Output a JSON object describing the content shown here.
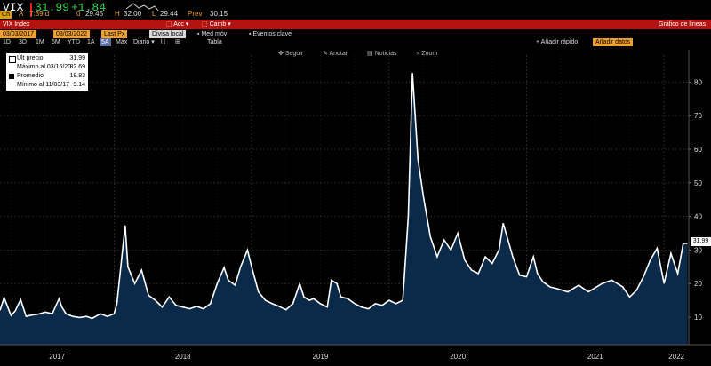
{
  "quote": {
    "ticker": "VIX",
    "last": "31.99",
    "change": "+1.84",
    "flag": "A",
    "time": "7:39 d",
    "open_label": "0",
    "open": "29.45",
    "high_label": "H",
    "high": "32.00",
    "low_label": "L",
    "low": "29.44",
    "prev_label": "Prev",
    "prev": "30.15"
  },
  "header": {
    "index_name": "VIX Index",
    "acc_button": "Acc",
    "camb_button": "Camb",
    "chart_type": "Gráfico de líneas"
  },
  "range": {
    "start": "03/03/2017",
    "end": "03/03/2022",
    "field": "Last Px",
    "currency": "Divisa local",
    "moving_avg": "Med móv",
    "key_events": "Eventos clave"
  },
  "periods": [
    "1D",
    "3D",
    "1M",
    "6M",
    "YTD",
    "1A",
    "5A",
    "Máx"
  ],
  "frequency": "Diario",
  "table_button": "Tabla",
  "quick_add": "Añadir rápido",
  "add_data": "Añadir datos",
  "chart_tools": [
    "Seguir",
    "Anotar",
    "Noticias",
    "Zoom"
  ],
  "legend": [
    {
      "label": "Últ precio",
      "value": "31.99",
      "color": "#ffffff"
    },
    {
      "label": "Máximo al 03/16/20",
      "value": "82.69",
      "color": "#ffffff"
    },
    {
      "label": "Promedio",
      "value": "18.83",
      "color": "#000000"
    },
    {
      "label": "Mínimo al 11/03/17",
      "value": "9.14",
      "color": "#ffffff"
    }
  ],
  "last_price_tag": "31.99",
  "colors": {
    "red_bar": "#b3140f",
    "orange": "#f0a030",
    "line": "#ffffff",
    "area": "#0b2a4a",
    "up": "#2fd14a"
  },
  "chart_data": {
    "type": "area",
    "title": "",
    "xlabel": "",
    "ylabel": "",
    "ylim": [
      4,
      90
    ],
    "yticks": [
      10,
      20,
      30,
      40,
      50,
      60,
      70,
      80
    ],
    "year_labels": [
      "2017",
      "2018",
      "2019",
      "2020",
      "2021",
      "2022"
    ],
    "x": [
      2017.17,
      2017.2,
      2017.25,
      2017.28,
      2017.32,
      2017.36,
      2017.4,
      2017.45,
      2017.5,
      2017.55,
      2017.6,
      2017.62,
      2017.65,
      2017.7,
      2017.75,
      2017.8,
      2017.84,
      2017.9,
      2017.95,
      2018.0,
      2018.02,
      2018.08,
      2018.1,
      2018.15,
      2018.2,
      2018.25,
      2018.3,
      2018.35,
      2018.4,
      2018.45,
      2018.5,
      2018.55,
      2018.6,
      2018.65,
      2018.7,
      2018.75,
      2018.8,
      2018.83,
      2018.88,
      2018.92,
      2018.97,
      2019.0,
      2019.05,
      2019.1,
      2019.15,
      2019.2,
      2019.25,
      2019.3,
      2019.35,
      2019.38,
      2019.42,
      2019.45,
      2019.5,
      2019.55,
      2019.58,
      2019.62,
      2019.65,
      2019.7,
      2019.75,
      2019.8,
      2019.85,
      2019.9,
      2019.95,
      2020.0,
      2020.05,
      2020.1,
      2020.14,
      2020.17,
      2020.21,
      2020.25,
      2020.3,
      2020.35,
      2020.4,
      2020.45,
      2020.5,
      2020.55,
      2020.6,
      2020.65,
      2020.7,
      2020.75,
      2020.8,
      2020.83,
      2020.9,
      2020.95,
      2021.0,
      2021.05,
      2021.08,
      2021.12,
      2021.17,
      2021.22,
      2021.3,
      2021.38,
      2021.45,
      2021.55,
      2021.62,
      2021.7,
      2021.75,
      2021.8,
      2021.85,
      2021.9,
      2021.95,
      2022.0,
      2022.05,
      2022.1,
      2022.14,
      2022.17
    ],
    "values": [
      12.0,
      15.8,
      10.5,
      11.8,
      15.2,
      10.2,
      10.6,
      10.9,
      11.5,
      11.0,
      15.5,
      13.0,
      11.0,
      10.2,
      9.9,
      10.2,
      9.6,
      11.0,
      10.2,
      11.0,
      14.0,
      37.3,
      25.0,
      20.0,
      24.0,
      16.5,
      15.0,
      13.0,
      16.0,
      13.5,
      13.0,
      12.5,
      13.2,
      12.5,
      14.0,
      20.0,
      24.8,
      21.0,
      19.5,
      25.0,
      30.0,
      25.0,
      17.5,
      15.0,
      14.0,
      13.2,
      12.2,
      14.0,
      20.0,
      16.0,
      15.0,
      15.5,
      14.0,
      13.0,
      21.0,
      20.0,
      16.0,
      15.5,
      14.0,
      13.0,
      12.5,
      14.0,
      13.5,
      15.0,
      14.0,
      15.0,
      40.0,
      82.7,
      57.0,
      46.0,
      34.0,
      28.0,
      33.0,
      30.0,
      35.0,
      27.0,
      24.0,
      23.0,
      28.0,
      26.0,
      30.0,
      38.0,
      28.0,
      22.5,
      22.0,
      28.0,
      23.0,
      20.5,
      19.0,
      18.5,
      17.5,
      19.5,
      17.5,
      20.0,
      21.0,
      19.0,
      16.0,
      18.0,
      22.0,
      27.0,
      30.5,
      20.0,
      29.0,
      23.0,
      32.0,
      31.99
    ]
  }
}
